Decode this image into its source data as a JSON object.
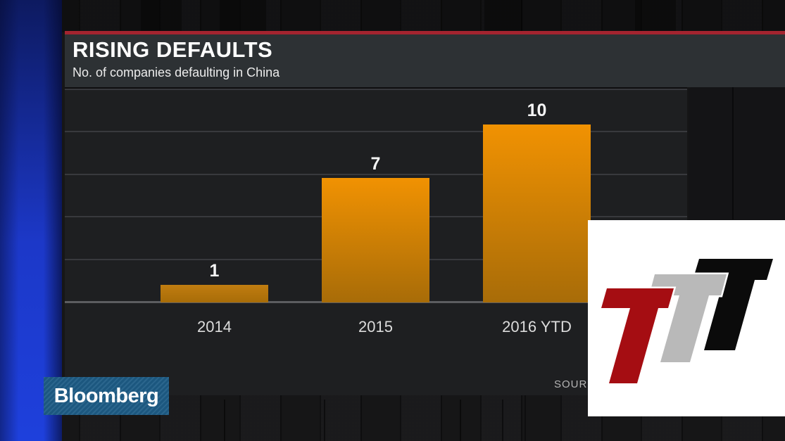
{
  "header": {
    "title": "RISING DEFAULTS",
    "subtitle": "No. of companies defaulting in China"
  },
  "chart_data": {
    "type": "bar",
    "categories": [
      "2014",
      "2015",
      "2016 YTD"
    ],
    "values": [
      1,
      7,
      10
    ],
    "value_labels": [
      "1",
      "7",
      "10"
    ],
    "title": "RISING DEFAULTS",
    "subtitle": "No. of companies defaulting in China",
    "xlabel": "",
    "ylabel": "",
    "ylim": [
      0,
      12
    ],
    "grid_values": [
      2.4,
      4.8,
      7.2,
      9.6,
      12
    ],
    "grid": "horizontal, no y tick labels",
    "legend": "none",
    "source_label": "SOURCE:"
  },
  "branding": {
    "network_logo_text": "Bloomberg",
    "overlay_logo_letters": [
      "T",
      "T",
      "T"
    ]
  },
  "colors": {
    "accent_red": "#a4242f",
    "header_bg": "#2d3134",
    "panel_bg": "#1e1f21",
    "gridline": "#38393d",
    "axis_line": "#5c5d60",
    "bar_top": "#f19202",
    "bar_bottom": "#a86c08",
    "bar_dim_top": "#c17d10",
    "bar_dim_bottom": "#a86c08",
    "wall": "#161617",
    "blue_strip_bright": "#1e40dc",
    "blue_strip_dark": "#0d1a60",
    "bloomberg_bg": "#1e5c86",
    "ttt_red": "#a50d12",
    "ttt_gray": "#b9b9b9",
    "ttt_black": "#0b0b0b"
  }
}
